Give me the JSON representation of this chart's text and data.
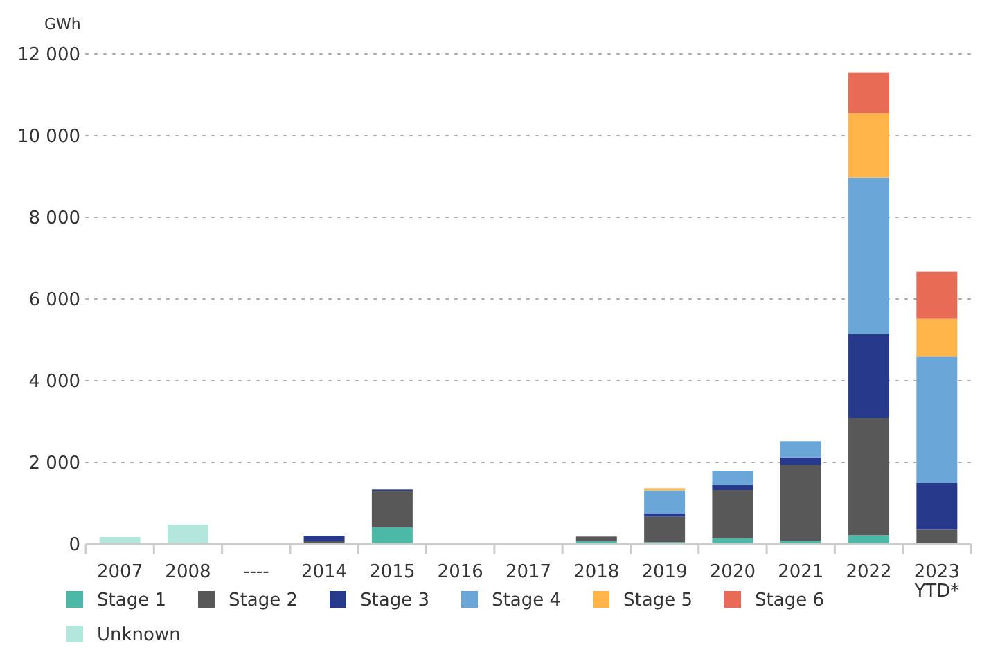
{
  "chart_data": {
    "type": "bar",
    "stacked": true,
    "ylabel": "GWh",
    "categories": [
      "2007",
      "2008",
      "----",
      "2014",
      "2015",
      "2016",
      "2017",
      "2018",
      "2019",
      "2020",
      "2021",
      "2022",
      "2023\nYTD*"
    ],
    "series": [
      {
        "name": "Stage 1",
        "color": "#4cb9a7",
        "values": [
          null,
          null,
          null,
          null,
          407,
          null,
          null,
          68,
          45,
          136,
          80,
          215,
          20
        ]
      },
      {
        "name": "Stage 2",
        "color": "#585858",
        "values": [
          null,
          null,
          null,
          68,
          892,
          null,
          null,
          113,
          622,
          1186,
          1852,
          2870,
          330
        ]
      },
      {
        "name": "Stage 3",
        "color": "#27398a",
        "values": [
          null,
          null,
          null,
          135,
          34,
          null,
          null,
          null,
          79,
          124,
          192,
          2056,
          1142
        ]
      },
      {
        "name": "Stage 4",
        "color": "#6aa6d8",
        "values": [
          null,
          null,
          null,
          null,
          null,
          null,
          null,
          null,
          565,
          351,
          396,
          3831,
          3096
        ]
      },
      {
        "name": "Stage 5",
        "color": "#ffb54a",
        "values": [
          null,
          null,
          null,
          null,
          null,
          null,
          null,
          null,
          56,
          null,
          null,
          1582,
          926
        ]
      },
      {
        "name": "Stage 6",
        "color": "#e76b55",
        "values": [
          null,
          null,
          null,
          null,
          null,
          null,
          null,
          null,
          null,
          null,
          null,
          994,
          1153
        ]
      },
      {
        "name": "Unknown",
        "color": "#b3e6dc",
        "values": [
          170,
          475,
          null,
          null,
          null,
          null,
          null,
          null,
          null,
          null,
          null,
          null,
          null
        ]
      }
    ],
    "ylim": [
      0,
      12000
    ],
    "yticks": [
      0,
      {
        "value": 2000,
        "label": "2 000"
      },
      {
        "value": 4000,
        "label": "4 000"
      },
      {
        "value": 6000,
        "label": "6 000"
      },
      {
        "value": 8000,
        "label": "8 000"
      },
      {
        "value": 10000,
        "label": "10 000"
      },
      {
        "value": 12000,
        "label": "12 000"
      }
    ],
    "grid": "y",
    "legend": "bottom"
  }
}
